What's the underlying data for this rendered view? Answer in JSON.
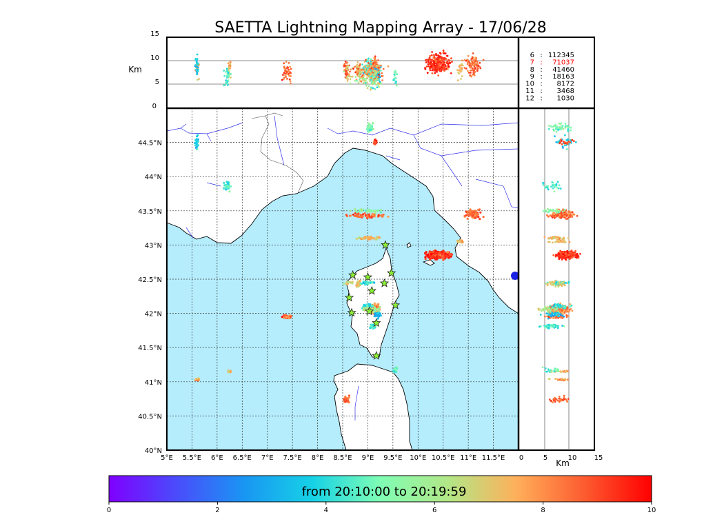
{
  "chart_data": {
    "type": "scatter",
    "title": "SAETTA Lightning Mapping Array - 17/06/28",
    "altitude_panel": {
      "ylabel": "Km",
      "ylim": [
        0,
        15
      ],
      "yticks": [
        "0",
        "5",
        "10",
        "15"
      ],
      "reference_lines_km": [
        5,
        10
      ]
    },
    "side_panel": {
      "xlabel": "Km",
      "xlim": [
        0,
        15
      ],
      "xticks": [
        "0",
        "5",
        "10",
        "15"
      ],
      "reference_lines_km": [
        5,
        10
      ]
    },
    "map": {
      "lon_range": [
        5,
        12
      ],
      "lat_range": [
        40,
        45
      ],
      "lon_ticks": [
        "5°E",
        "5.5°E",
        "6°E",
        "6.5°E",
        "7°E",
        "7.5°E",
        "8°E",
        "8.5°E",
        "9°E",
        "9.5°E",
        "10°E",
        "10.5°E",
        "11°E",
        "11.5°E"
      ],
      "lat_ticks": [
        "40°N",
        "40.5°N",
        "41°N",
        "41.5°N",
        "42°N",
        "42.5°N",
        "43°N",
        "43.5°N",
        "44°N",
        "44.5°N"
      ],
      "stations_lonlat": [
        [
          9.35,
          43.0
        ],
        [
          8.7,
          42.56
        ],
        [
          9.0,
          42.53
        ],
        [
          9.47,
          42.59
        ],
        [
          9.33,
          42.44
        ],
        [
          9.08,
          42.33
        ],
        [
          8.63,
          42.23
        ],
        [
          8.68,
          42.01
        ],
        [
          9.03,
          42.03
        ],
        [
          9.55,
          42.12
        ],
        [
          9.17,
          41.86
        ],
        [
          9.17,
          41.38
        ]
      ]
    },
    "legend": [
      {
        "stations": "6",
        "count": "112345",
        "highlight": false
      },
      {
        "stations": "7",
        "count": "71037",
        "highlight": true
      },
      {
        "stations": "8",
        "count": "41460",
        "highlight": false
      },
      {
        "stations": "9",
        "count": "18163",
        "highlight": false
      },
      {
        "stations": "10",
        "count": "8172",
        "highlight": false
      },
      {
        "stations": "11",
        "count": "3468",
        "highlight": false
      },
      {
        "stations": "12",
        "count": "1030",
        "highlight": false
      }
    ],
    "colorbar": {
      "label": "from 20:10:00 to 20:19:59",
      "range": [
        0,
        10
      ],
      "ticks": [
        "0",
        "2",
        "4",
        "6",
        "8",
        "10"
      ],
      "colors": [
        "#7f00ff",
        "#4a4cfb",
        "#1996f3",
        "#16d2e6",
        "#7ffdb4",
        "#b2e787",
        "#feb05a",
        "#fd5c30",
        "#ff0000"
      ]
    },
    "clusters": [
      {
        "lon": 5.6,
        "lat": 41.03,
        "alt": 8.5,
        "t": 7.8,
        "n": 20,
        "rx": 0.05,
        "ry": 0.03
      },
      {
        "lon": 6.25,
        "lat": 41.15,
        "alt": 8.0,
        "t": 7.2,
        "n": 18,
        "rx": 0.05,
        "ry": 0.02
      },
      {
        "lon": 7.4,
        "lat": 41.95,
        "alt": 7.5,
        "t": 8.6,
        "n": 45,
        "rx": 0.12,
        "ry": 0.04
      },
      {
        "lon": 6.2,
        "lat": 43.85,
        "alt": 6.5,
        "t": 4.5,
        "n": 30,
        "rx": 0.12,
        "ry": 0.12
      },
      {
        "lon": 5.6,
        "lat": 44.5,
        "alt": 9.0,
        "t": 3.5,
        "n": 25,
        "rx": 0.05,
        "ry": 0.15
      },
      {
        "lon": 9.05,
        "lat": 44.72,
        "alt": 8.0,
        "t": 5.0,
        "n": 55,
        "rx": 0.1,
        "ry": 0.1
      },
      {
        "lon": 9.15,
        "lat": 44.5,
        "alt": 9.0,
        "t": 9.0,
        "n": 18,
        "rx": 0.04,
        "ry": 0.05
      },
      {
        "lon": 11.1,
        "lat": 43.45,
        "alt": 9.0,
        "t": 8.6,
        "n": 90,
        "rx": 0.22,
        "ry": 0.09
      },
      {
        "lon": 10.85,
        "lat": 43.05,
        "alt": 8.0,
        "t": 7.5,
        "n": 25,
        "rx": 0.1,
        "ry": 0.03
      },
      {
        "lon": 10.4,
        "lat": 42.85,
        "alt": 9.5,
        "t": 9.3,
        "n": 260,
        "rx": 0.35,
        "ry": 0.08
      },
      {
        "lon": 8.82,
        "lat": 42.43,
        "alt": 7.5,
        "t": 7.0,
        "n": 45,
        "rx": 0.07,
        "ry": 0.07
      },
      {
        "lon": 9.15,
        "lat": 42.06,
        "alt": 8.0,
        "t": 8.3,
        "n": 160,
        "rx": 0.12,
        "ry": 0.1
      },
      {
        "lon": 9.2,
        "lat": 41.98,
        "alt": 7.0,
        "t": 3.2,
        "n": 40,
        "rx": 0.08,
        "ry": 0.06
      },
      {
        "lon": 9.1,
        "lat": 41.81,
        "alt": 6.5,
        "t": 4.5,
        "n": 60,
        "rx": 0.08,
        "ry": 0.04
      },
      {
        "lon": 9.55,
        "lat": 41.17,
        "alt": 7.0,
        "t": 4.8,
        "n": 20,
        "rx": 0.06,
        "ry": 0.05
      },
      {
        "lon": 8.58,
        "lat": 40.75,
        "alt": 8.0,
        "t": 8.8,
        "n": 40,
        "rx": 0.08,
        "ry": 0.06
      },
      {
        "lon": 9.0,
        "lat": 42.1,
        "alt": 8.0,
        "t": 4.0,
        "n": 40,
        "rx": 0.15,
        "ry": 0.05
      },
      {
        "lon": 9.1,
        "lat": 42.06,
        "alt": 6.0,
        "t": 6.0,
        "n": 40,
        "rx": 0.3,
        "ry": 0.05
      },
      {
        "lon": 9.0,
        "lat": 42.45,
        "alt": 8.5,
        "t": 4.0,
        "n": 30,
        "rx": 0.2,
        "ry": 0.05
      },
      {
        "lon": 8.6,
        "lat": 42.45,
        "alt": 7.0,
        "t": 7.0,
        "n": 20,
        "rx": 0.12,
        "ry": 0.03
      },
      {
        "lon": 9.0,
        "lat": 43.43,
        "alt": 8.0,
        "t": 8.5,
        "n": 60,
        "rx": 0.5,
        "ry": 0.05
      },
      {
        "lon": 9.0,
        "lat": 43.5,
        "alt": 7.0,
        "t": 5.5,
        "n": 30,
        "rx": 0.4,
        "ry": 0.04
      },
      {
        "lon": 9.0,
        "lat": 43.1,
        "alt": 7.5,
        "t": 7.3,
        "n": 40,
        "rx": 0.3,
        "ry": 0.04
      }
    ]
  }
}
